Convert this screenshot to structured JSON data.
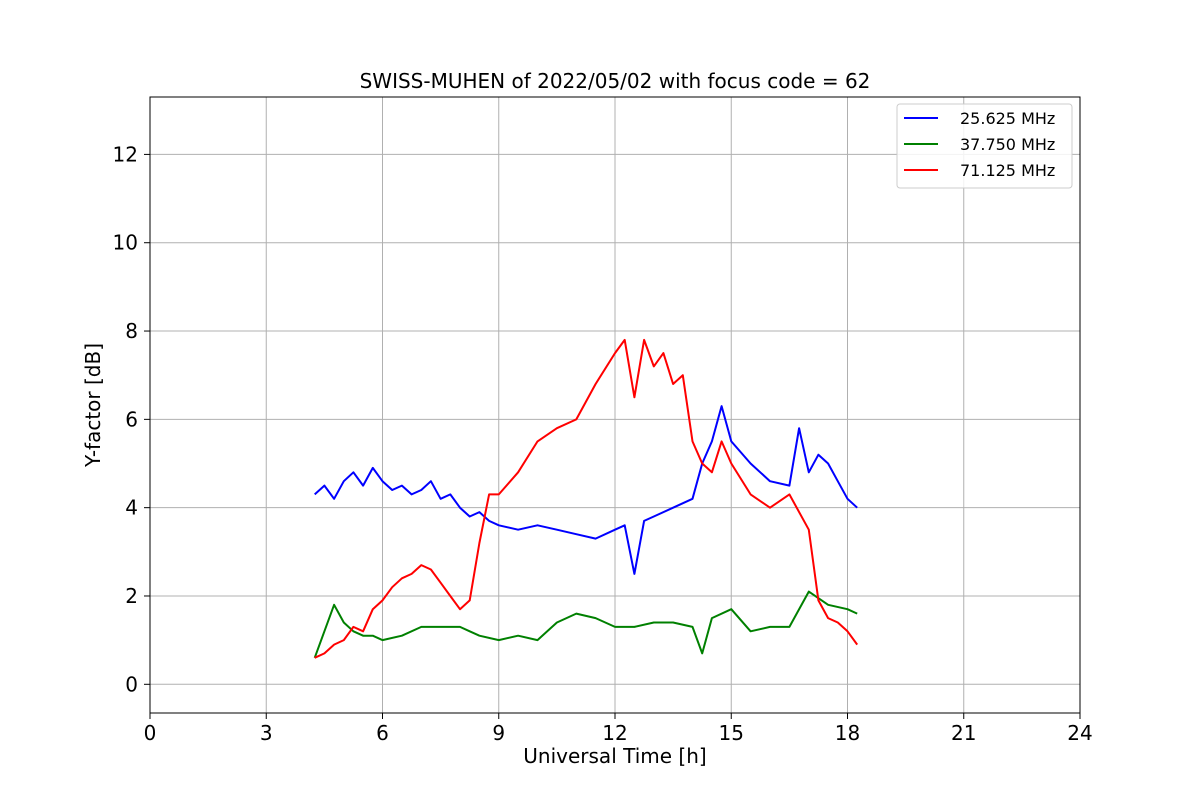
{
  "chart_data": {
    "type": "line",
    "title": "SWISS-MUHEN of 2022/05/02 with focus code = 62",
    "xlabel": "Universal Time [h]",
    "ylabel": "Y-factor [dB]",
    "xlim": [
      0,
      24
    ],
    "ylim": [
      -0.65,
      13.3
    ],
    "xticks": [
      "0",
      "3",
      "6",
      "9",
      "12",
      "15",
      "18",
      "21",
      "24"
    ],
    "yticks": [
      "0",
      "2",
      "4",
      "6",
      "8",
      "10",
      "12"
    ],
    "grid": true,
    "legend_position": "top-right",
    "series": [
      {
        "name": "25.625 MHz",
        "color": "#0000ff",
        "x": [
          4.25,
          4.5,
          4.75,
          5.0,
          5.25,
          5.5,
          5.75,
          6.0,
          6.25,
          6.5,
          6.75,
          7.0,
          7.25,
          7.5,
          7.75,
          8.0,
          8.25,
          8.5,
          8.75,
          9.0,
          9.5,
          10.0,
          10.5,
          11.0,
          11.5,
          12.0,
          12.25,
          12.5,
          12.75,
          13.0,
          13.5,
          14.0,
          14.25,
          14.5,
          14.75,
          15.0,
          15.5,
          16.0,
          16.5,
          16.75,
          17.0,
          17.25,
          17.5,
          17.75,
          18.0,
          18.25
        ],
        "values": [
          4.3,
          4.5,
          4.2,
          4.6,
          4.8,
          4.5,
          4.9,
          4.6,
          4.4,
          4.5,
          4.3,
          4.4,
          4.6,
          4.2,
          4.3,
          4.0,
          3.8,
          3.9,
          3.7,
          3.6,
          3.5,
          3.6,
          3.5,
          3.4,
          3.3,
          3.5,
          3.6,
          2.5,
          3.7,
          3.8,
          4.0,
          4.2,
          5.0,
          5.5,
          6.3,
          5.5,
          5.0,
          4.6,
          4.5,
          5.8,
          4.8,
          5.2,
          5.0,
          4.6,
          4.2,
          4.0
        ]
      },
      {
        "name": "37.750 MHz",
        "color": "#008000",
        "x": [
          4.25,
          4.5,
          4.75,
          5.0,
          5.25,
          5.5,
          5.75,
          6.0,
          6.5,
          7.0,
          7.5,
          8.0,
          8.25,
          8.5,
          9.0,
          9.5,
          10.0,
          10.5,
          11.0,
          11.5,
          12.0,
          12.5,
          13.0,
          13.5,
          14.0,
          14.25,
          14.5,
          15.0,
          15.5,
          16.0,
          16.5,
          17.0,
          17.5,
          18.0,
          18.25
        ],
        "values": [
          0.6,
          1.2,
          1.8,
          1.4,
          1.2,
          1.1,
          1.1,
          1.0,
          1.1,
          1.3,
          1.3,
          1.3,
          1.2,
          1.1,
          1.0,
          1.1,
          1.0,
          1.4,
          1.6,
          1.5,
          1.3,
          1.3,
          1.4,
          1.4,
          1.3,
          0.7,
          1.5,
          1.7,
          1.2,
          1.3,
          1.3,
          2.1,
          1.8,
          1.7,
          1.6
        ]
      },
      {
        "name": "71.125 MHz",
        "color": "#ff0000",
        "x": [
          4.25,
          4.5,
          4.75,
          5.0,
          5.25,
          5.5,
          5.75,
          6.0,
          6.25,
          6.5,
          6.75,
          7.0,
          7.25,
          7.5,
          7.75,
          8.0,
          8.25,
          8.5,
          8.75,
          9.0,
          9.5,
          10.0,
          10.5,
          11.0,
          11.5,
          12.0,
          12.25,
          12.5,
          12.75,
          13.0,
          13.25,
          13.5,
          13.75,
          14.0,
          14.25,
          14.5,
          14.75,
          15.0,
          15.5,
          16.0,
          16.5,
          17.0,
          17.25,
          17.5,
          17.75,
          18.0,
          18.25
        ],
        "values": [
          0.6,
          0.7,
          0.9,
          1.0,
          1.3,
          1.2,
          1.7,
          1.9,
          2.2,
          2.4,
          2.5,
          2.7,
          2.6,
          2.3,
          2.0,
          1.7,
          1.9,
          3.2,
          4.3,
          4.3,
          4.8,
          5.5,
          5.8,
          6.0,
          6.8,
          7.5,
          7.8,
          6.5,
          7.8,
          7.2,
          7.5,
          6.8,
          7.0,
          5.5,
          5.0,
          4.8,
          5.5,
          5.0,
          4.3,
          4.0,
          4.3,
          3.5,
          1.9,
          1.5,
          1.4,
          1.2,
          0.9
        ]
      }
    ]
  }
}
